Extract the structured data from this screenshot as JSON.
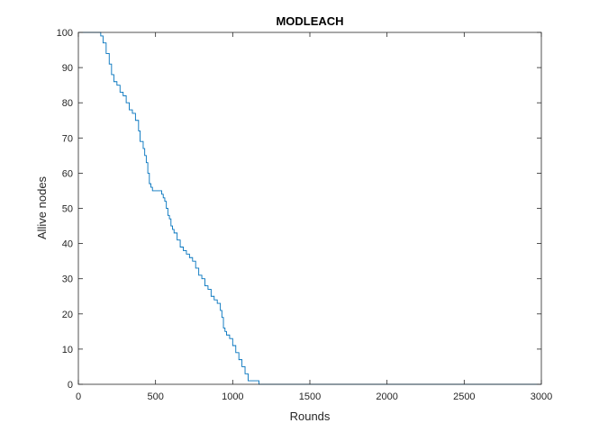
{
  "chart_data": {
    "type": "line",
    "title": "MODLEACH",
    "xlabel": "Rounds",
    "ylabel": "Allive nodes",
    "xlim": [
      0,
      3000
    ],
    "ylim": [
      0,
      100
    ],
    "xticks": [
      0,
      500,
      1000,
      1500,
      2000,
      2500,
      3000
    ],
    "yticks": [
      0,
      10,
      20,
      30,
      40,
      50,
      60,
      70,
      80,
      90,
      100
    ],
    "xtick_labels": [
      "0",
      "500",
      "1000",
      "1500",
      "2000",
      "2500",
      "3000"
    ],
    "ytick_labels": [
      "0",
      "10",
      "20",
      "30",
      "40",
      "50",
      "60",
      "70",
      "80",
      "90",
      "100"
    ],
    "grid": false,
    "legend": false,
    "line_style": "step",
    "line_color": "#0072BD",
    "series": [
      {
        "x": [
          0,
          145,
          160,
          180,
          200,
          215,
          230,
          250,
          270,
          290,
          310,
          330,
          350,
          370,
          390,
          400,
          420,
          430,
          440,
          450,
          460,
          470,
          480,
          500,
          520,
          540,
          550,
          560,
          570,
          580,
          590,
          600,
          610,
          620,
          640,
          660,
          680,
          700,
          720,
          740,
          760,
          780,
          800,
          820,
          840,
          860,
          880,
          900,
          920,
          930,
          940,
          950,
          960,
          980,
          1000,
          1020,
          1040,
          1060,
          1080,
          1100,
          1170,
          3000
        ],
        "y": [
          100,
          99,
          97,
          94,
          91,
          88,
          86,
          85,
          83,
          82,
          80,
          78,
          77,
          75,
          72,
          69,
          67,
          65,
          63,
          60,
          57,
          56,
          55,
          55,
          55,
          54,
          53,
          52,
          50,
          48,
          47,
          45,
          44,
          43,
          41,
          39,
          38,
          37,
          36,
          35,
          33,
          31,
          30,
          28,
          27,
          25,
          24,
          23,
          21,
          19,
          16,
          15,
          14,
          13,
          11,
          9,
          7,
          5,
          3,
          1,
          0,
          0
        ]
      }
    ]
  }
}
